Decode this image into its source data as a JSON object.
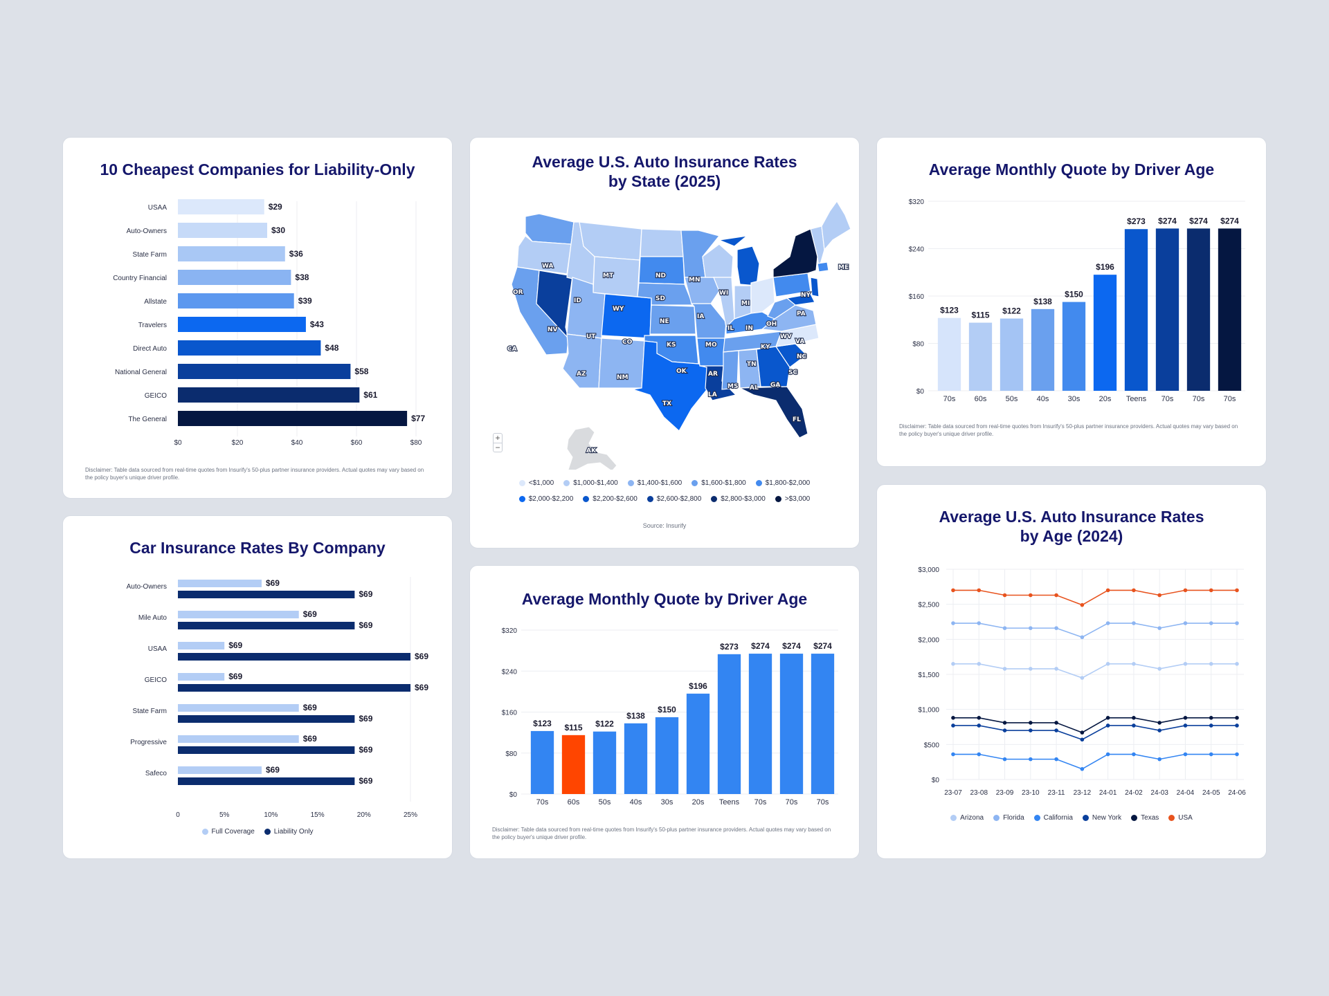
{
  "colors": {
    "background": "#dde1e8",
    "title": "#15176b",
    "map_outline": "#ffffff"
  },
  "liability_card": {
    "title": "10 Cheapest Companies for Liability-Only",
    "disclaimer": "Disclaimer: Table data sourced from real-time quotes from Insurify's 50-plus partner insurance providers. Actual quotes may vary based on the policy buyer's unique driver profile."
  },
  "company_card": {
    "title": "Car Insurance Rates By Company",
    "legend": [
      {
        "label": "Full Coverage",
        "color": "#b3cdf5"
      },
      {
        "label": "Liability Only",
        "color": "#0b2c6e"
      }
    ]
  },
  "map_card": {
    "title": "Average U.S. Auto Insurance Rates\nby State (2025)",
    "source": "Source: Insurify",
    "zoom_in": "+",
    "zoom_out": "−",
    "legend_row1": [
      {
        "label": "<$1,000",
        "color": "#dce8fb"
      },
      {
        "label": "$1,000-$1,400",
        "color": "#b3cdf5"
      },
      {
        "label": "$1,400-$1,600",
        "color": "#8db5f2"
      },
      {
        "label": "$1,600-$1,800",
        "color": "#6aa0ee"
      },
      {
        "label": "$1,800-$2,000",
        "color": "#428aee"
      }
    ],
    "legend_row2": [
      {
        "label": "$2,000-$2,200",
        "color": "#0c68f0"
      },
      {
        "label": "$2,200-$2,600",
        "color": "#0957cd"
      },
      {
        "label": "$2,600-$2,800",
        "color": "#0a3f9c"
      },
      {
        "label": "$2,800-$3,000",
        "color": "#0b2c6e"
      },
      {
        "label": ">$3,000",
        "color": "#051741"
      }
    ],
    "states": [
      {
        "abbr": "WA",
        "color": "#6aa0ee"
      },
      {
        "abbr": "OR",
        "color": "#b3cdf5"
      },
      {
        "abbr": "CA",
        "color": "#6aa0ee"
      },
      {
        "abbr": "NV",
        "color": "#0a3f9c"
      },
      {
        "abbr": "ID",
        "color": "#b3cdf5"
      },
      {
        "abbr": "MT",
        "color": "#b3cdf5"
      },
      {
        "abbr": "WY",
        "color": "#b3cdf5"
      },
      {
        "abbr": "UT",
        "color": "#8db5f2"
      },
      {
        "abbr": "AZ",
        "color": "#8db5f2"
      },
      {
        "abbr": "CO",
        "color": "#0c68f0"
      },
      {
        "abbr": "NM",
        "color": "#8db5f2"
      },
      {
        "abbr": "ND",
        "color": "#b3cdf5"
      },
      {
        "abbr": "SD",
        "color": "#428aee"
      },
      {
        "abbr": "NE",
        "color": "#6aa0ee"
      },
      {
        "abbr": "KS",
        "color": "#6aa0ee"
      },
      {
        "abbr": "OK",
        "color": "#428aee"
      },
      {
        "abbr": "TX",
        "color": "#0c68f0"
      },
      {
        "abbr": "MN",
        "color": "#6aa0ee"
      },
      {
        "abbr": "IA",
        "color": "#8db5f2"
      },
      {
        "abbr": "MO",
        "color": "#6aa0ee"
      },
      {
        "abbr": "AR",
        "color": "#428aee"
      },
      {
        "abbr": "LA",
        "color": "#0a3f9c"
      },
      {
        "abbr": "WI",
        "color": "#b3cdf5"
      },
      {
        "abbr": "IL",
        "color": "#b3cdf5"
      },
      {
        "abbr": "MI",
        "color": "#0957cd"
      },
      {
        "abbr": "IN",
        "color": "#b3cdf5"
      },
      {
        "abbr": "OH",
        "color": "#dce8fb"
      },
      {
        "abbr": "KY",
        "color": "#428aee"
      },
      {
        "abbr": "TN",
        "color": "#6aa0ee"
      },
      {
        "abbr": "MS",
        "color": "#6aa0ee"
      },
      {
        "abbr": "AL",
        "color": "#8db5f2"
      },
      {
        "abbr": "GA",
        "color": "#0957cd"
      },
      {
        "abbr": "FL",
        "color": "#0b2c6e"
      },
      {
        "abbr": "SC",
        "color": "#0957cd"
      },
      {
        "abbr": "NC",
        "color": "#dce8fb"
      },
      {
        "abbr": "VA",
        "color": "#8db5f2"
      },
      {
        "abbr": "WV",
        "color": "#6aa0ee"
      },
      {
        "abbr": "PA",
        "color": "#428aee"
      },
      {
        "abbr": "NY",
        "color": "#051741"
      },
      {
        "abbr": "ME",
        "color": "#b3cdf5"
      },
      {
        "abbr": "AK",
        "color": "#d9dbde"
      }
    ]
  },
  "age_card_top": {
    "title": "Average Monthly Quote by Driver Age",
    "disclaimer": "Disclaimer: Table data sourced from real-time quotes from Insurify's 50-plus partner insurance providers. Actual quotes may vary based on the policy buyer's unique driver profile."
  },
  "age_card_mid": {
    "title": "Average Monthly Quote by Driver Age",
    "disclaimer": "Disclaimer: Table data sourced from real-time quotes from Insurify's 50-plus partner insurance providers. Actual quotes may vary based on the policy buyer's unique driver profile."
  },
  "line_card": {
    "title": "Average U.S. Auto Insurance Rates\nby Age (2024)"
  },
  "chart_data": [
    {
      "id": "liability",
      "type": "bar",
      "orientation": "horizontal",
      "title": "10 Cheapest Companies for Liability-Only",
      "categories": [
        "USAA",
        "Auto-Owners",
        "State Farm",
        "Country Financial",
        "Allstate",
        "Travelers",
        "Direct Auto",
        "National General",
        "GEICO",
        "The General"
      ],
      "values": [
        29,
        30,
        36,
        38,
        39,
        43,
        48,
        58,
        61,
        77
      ],
      "value_labels": [
        "$29",
        "$30",
        "$36",
        "$38",
        "$39",
        "$43",
        "$48",
        "$58",
        "$61",
        "$77"
      ],
      "colors": [
        "#dce8fb",
        "#c6daf8",
        "#a9c8f5",
        "#8ab4f2",
        "#5c98ef",
        "#0c68f0",
        "#0957cd",
        "#0a3f9c",
        "#0b2c6e",
        "#051741"
      ],
      "xlim": [
        0,
        80
      ],
      "xticks": [
        0,
        20,
        40,
        60,
        80
      ],
      "xtick_labels": [
        "$0",
        "$20",
        "$40",
        "$60",
        "$80"
      ],
      "grid": true
    },
    {
      "id": "company",
      "type": "bar",
      "orientation": "horizontal",
      "title": "Car Insurance Rates By Company",
      "categories": [
        "Auto-Owners",
        "Mile Auto",
        "USAA",
        "GEICO",
        "State Farm",
        "Progressive",
        "Safeco"
      ],
      "series": [
        {
          "name": "Full Coverage",
          "values": [
            9,
            13,
            5,
            5,
            13,
            13,
            9
          ],
          "labels": [
            "$69",
            "$69",
            "$69",
            "$69",
            "$69",
            "$69",
            "$69"
          ],
          "color": "#b3cdf5"
        },
        {
          "name": "Liability Only",
          "values": [
            19,
            19,
            25,
            25,
            19,
            19,
            19
          ],
          "labels": [
            "$69",
            "$69",
            "$69",
            "$69",
            "$69",
            "$69",
            "$69"
          ],
          "color": "#0b2c6e"
        }
      ],
      "xlim": [
        0,
        25
      ],
      "xticks": [
        0,
        5,
        10,
        15,
        20,
        25
      ],
      "xtick_labels": [
        "0",
        "5%",
        "10%",
        "15%",
        "20%",
        "25%"
      ],
      "grid": true
    },
    {
      "id": "age_top",
      "type": "bar",
      "title": "Average Monthly Quote by Driver Age",
      "categories": [
        "70s",
        "60s",
        "50s",
        "40s",
        "30s",
        "20s",
        "Teens",
        "70s",
        "70s",
        "70s"
      ],
      "values": [
        123,
        115,
        122,
        138,
        150,
        196,
        273,
        274,
        274,
        274
      ],
      "value_labels": [
        "$123",
        "$115",
        "$122",
        "$138",
        "$150",
        "$196",
        "$273",
        "$274",
        "$274",
        "$274"
      ],
      "colors": [
        "#d6e4fb",
        "#b3cdf5",
        "#a4c4f4",
        "#6aa0ee",
        "#428aee",
        "#0c68f0",
        "#0957cd",
        "#0a3f9c",
        "#0b2c6e",
        "#051741"
      ],
      "ylim": [
        0,
        320
      ],
      "yticks": [
        0,
        80,
        160,
        240,
        320
      ],
      "ytick_labels": [
        "$0",
        "$80",
        "$160",
        "$240",
        "$320"
      ],
      "grid": true
    },
    {
      "id": "age_mid",
      "type": "bar",
      "title": "Average Monthly Quote by Driver Age",
      "categories": [
        "70s",
        "60s",
        "50s",
        "40s",
        "30s",
        "20s",
        "Teens",
        "70s",
        "70s",
        "70s"
      ],
      "values": [
        123,
        115,
        122,
        138,
        150,
        196,
        273,
        274,
        274,
        274
      ],
      "value_labels": [
        "$123",
        "$115",
        "$122",
        "$138",
        "$150",
        "$196",
        "$273",
        "$274",
        "$274",
        "$274"
      ],
      "colors": [
        "#3385f2",
        "#ff4500",
        "#3385f2",
        "#3385f2",
        "#3385f2",
        "#3385f2",
        "#3385f2",
        "#3385f2",
        "#3385f2",
        "#3385f2"
      ],
      "ylim": [
        0,
        320
      ],
      "yticks": [
        0,
        80,
        160,
        240,
        320
      ],
      "ytick_labels": [
        "$0",
        "$80",
        "$160",
        "$240",
        "$320"
      ],
      "grid": true
    },
    {
      "id": "age_lines",
      "type": "line",
      "title": "Average U.S. Auto Insurance Rates by Age (2024)",
      "x": [
        "23-07",
        "23-08",
        "23-09",
        "23-10",
        "23-11",
        "23-12",
        "24-01",
        "24-02",
        "24-03",
        "24-04",
        "24-05",
        "24-06"
      ],
      "series": [
        {
          "name": "Arizona",
          "color": "#b3cdf5",
          "values": [
            1650,
            1650,
            1580,
            1580,
            1580,
            1450,
            1650,
            1650,
            1580,
            1650,
            1650,
            1650
          ]
        },
        {
          "name": "Florida",
          "color": "#8db5f2",
          "values": [
            2230,
            2230,
            2160,
            2160,
            2160,
            2030,
            2230,
            2230,
            2160,
            2230,
            2230,
            2230
          ]
        },
        {
          "name": "California",
          "color": "#3385f2",
          "values": [
            360,
            360,
            290,
            290,
            290,
            150,
            360,
            360,
            290,
            360,
            360,
            360
          ]
        },
        {
          "name": "New York",
          "color": "#0a3f9c",
          "values": [
            770,
            770,
            700,
            700,
            700,
            570,
            770,
            770,
            700,
            770,
            770,
            770
          ]
        },
        {
          "name": "Texas",
          "color": "#051741",
          "values": [
            880,
            880,
            810,
            810,
            810,
            670,
            880,
            880,
            810,
            880,
            880,
            880
          ]
        },
        {
          "name": "USA",
          "color": "#e8531e",
          "values": [
            2700,
            2700,
            2630,
            2630,
            2630,
            2490,
            2700,
            2700,
            2630,
            2700,
            2700,
            2700
          ]
        }
      ],
      "ylim": [
        0,
        3000
      ],
      "yticks": [
        0,
        500,
        1000,
        1500,
        2000,
        2500,
        3000
      ],
      "ytick_labels": [
        "$0",
        "$500",
        "$1,000",
        "$1,500",
        "$2,000",
        "$2,500",
        "$3,000"
      ],
      "legend_position": "bottom",
      "grid": true
    }
  ]
}
